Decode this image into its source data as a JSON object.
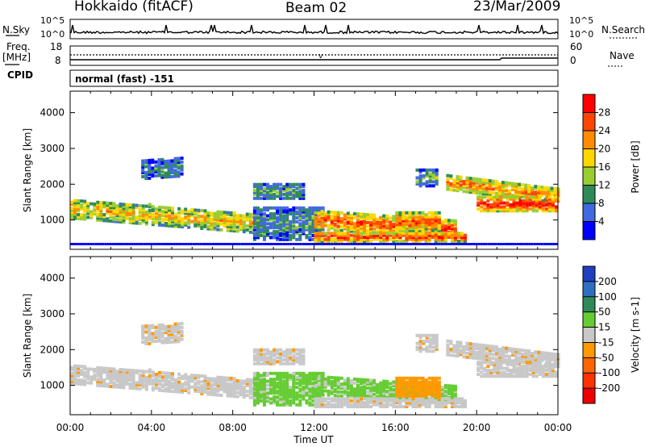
{
  "header": {
    "station": "Hokkaido (fitACF)",
    "beam": "Beam 02",
    "date": "23/Mar/2009"
  },
  "top_panels": {
    "nsky_label": "N.Sky",
    "nsearch_label": "N.Search",
    "noise_ticks": [
      "10^5",
      "10^0"
    ],
    "freq_label_1": "Freq.",
    "freq_label_2": "[MHz]",
    "freq_ticks": [
      "18",
      "8"
    ],
    "nave_label": "Nave",
    "nave_ticks": [
      "60",
      "0"
    ],
    "cpid_label": "CPID",
    "cpid_value": "normal (fast) -151"
  },
  "chart_data": [
    {
      "type": "heatmap",
      "name": "power",
      "ylabel": "Slant Range [km]",
      "ylim": [
        180,
        4600
      ],
      "yticks": [
        1000,
        2000,
        3000,
        4000
      ],
      "colorbar": {
        "label": "Power [dB]",
        "ticks": [
          "28",
          "24",
          "20",
          "16",
          "12",
          "8",
          "4"
        ],
        "colors": [
          "#ff0000",
          "#ff4500",
          "#ff8c00",
          "#ffd700",
          "#9acd32",
          "#2e8b57",
          "#4169e1",
          "#0000ff"
        ]
      }
    },
    {
      "type": "heatmap",
      "name": "velocity",
      "xlabel": "Time UT",
      "ylabel": "Slant Range [km]",
      "ylim": [
        180,
        4600
      ],
      "yticks": [
        1000,
        2000,
        3000,
        4000
      ],
      "xticks": [
        "00:00",
        "04:00",
        "08:00",
        "12:00",
        "16:00",
        "20:00",
        "00:00"
      ],
      "colorbar": {
        "label": "Velocity [m s-1]",
        "ticks": [
          "200",
          "100",
          "50",
          "15",
          "-15",
          "-50",
          "-100",
          "-200"
        ],
        "colors": [
          "#1f3fbf",
          "#2f6fc0",
          "#2e8b57",
          "#66cc33",
          "#c8c8c8",
          "#ff9900",
          "#ff6600",
          "#ff3300",
          "#ee0000"
        ]
      }
    }
  ]
}
